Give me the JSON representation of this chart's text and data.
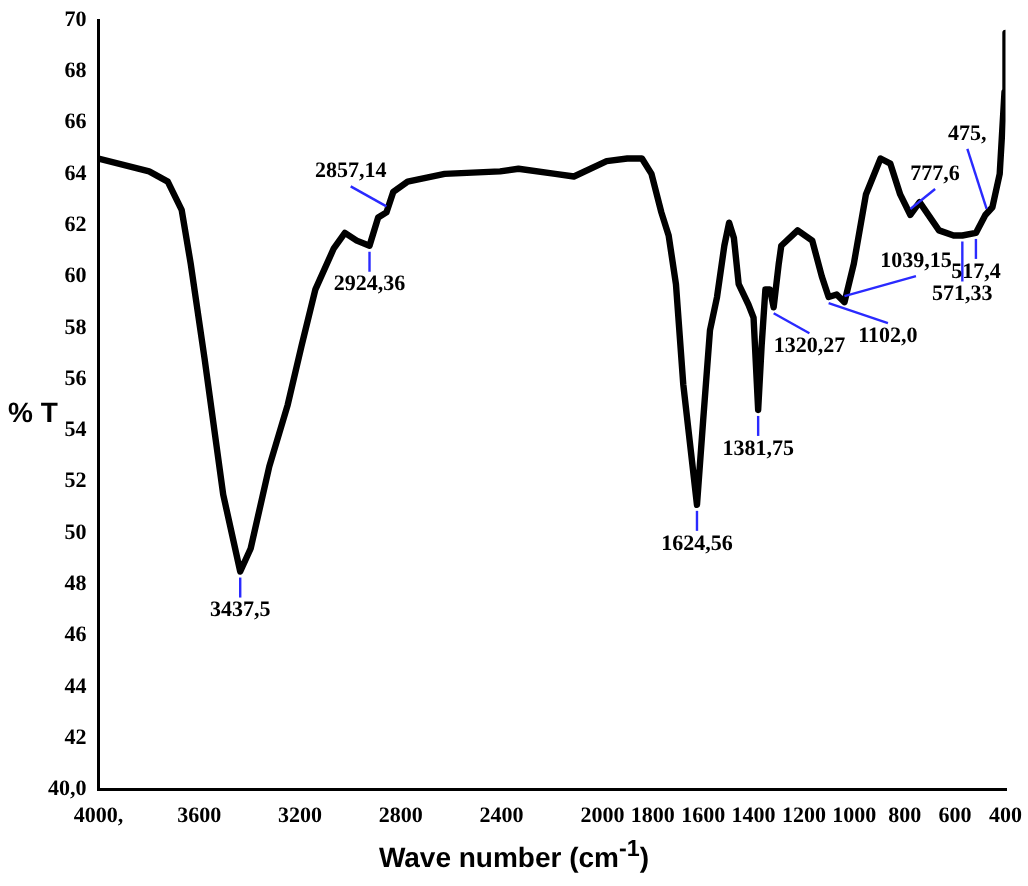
{
  "chart_data": {
    "type": "line",
    "xlabel": "Wave number (cm$^{-1}$)",
    "ylabel": "% T",
    "x": [
      4000,
      3799,
      3725,
      3670,
      3634,
      3579,
      3505,
      3437.5,
      3396,
      3322,
      3249,
      3194,
      3139,
      3066,
      3022,
      2975,
      2924.36,
      2890,
      2857.14,
      2830,
      2773,
      2626,
      2406,
      2333,
      2187,
      2113,
      1983,
      1901,
      1843,
      1805,
      1766,
      1737,
      1708,
      1679,
      1624.56,
      1600,
      1573,
      1545,
      1516,
      1497,
      1478,
      1459,
      1420,
      1400,
      1381.75,
      1368,
      1353,
      1335,
      1320.27,
      1300,
      1290,
      1225,
      1167,
      1129,
      1102,
      1070,
      1039.15,
      1002,
      954,
      896,
      857,
      818,
      777.6,
      741,
      664,
      606,
      571.33,
      517.4,
      480,
      452,
      423,
      404,
      400
    ],
    "series": [
      {
        "color": "#000000",
        "values": [
          64.6,
          64.1,
          63.7,
          62.6,
          60.5,
          56.8,
          51.5,
          48.5,
          49.4,
          52.6,
          55.0,
          57.3,
          59.5,
          61.1,
          61.7,
          61.4,
          61.2,
          62.3,
          62.5,
          63.3,
          63.7,
          64.0,
          64.1,
          64.2,
          64.0,
          63.9,
          64.5,
          64.6,
          64.6,
          64.0,
          62.5,
          61.6,
          59.7,
          55.8,
          51.1,
          54.4,
          57.9,
          59.2,
          61.2,
          62.1,
          61.5,
          59.7,
          58.9,
          58.4,
          54.8,
          57.3,
          59.5,
          59.5,
          58.8,
          60.5,
          61.2,
          61.8,
          61.4,
          60.0,
          59.2,
          59.3,
          59.0,
          60.5,
          63.2,
          64.6,
          64.4,
          63.2,
          62.4,
          62.9,
          61.8,
          61.6,
          61.6,
          61.7,
          62.4,
          62.7,
          64.0,
          67.2,
          69.5
        ]
      }
    ],
    "xlim": [
      4000,
      400
    ],
    "xticks": [
      {
        "value": 4000,
        "label": "4000,"
      },
      3600,
      3200,
      2800,
      2400,
      2000,
      1800,
      1600,
      1400,
      1200,
      1000,
      800,
      600,
      400
    ],
    "ylim": [
      40,
      70
    ],
    "yticks": [
      {
        "value": 40,
        "label": "40,0"
      },
      42,
      44,
      46,
      48,
      50,
      52,
      54,
      56,
      58,
      60,
      62,
      64,
      66,
      68,
      70
    ],
    "grid": false,
    "legend": false,
    "marker": "none",
    "line_style": "solid",
    "annotations": [
      {
        "text": "3437,5",
        "x": 3437.5,
        "y": 48.5
      },
      {
        "text": "2924,36",
        "x": 2924.36,
        "y": 61.2
      },
      {
        "text": "2857,14",
        "x": 2857.14,
        "y": 62.5
      },
      {
        "text": "1624,56",
        "x": 1624.56,
        "y": 51.1
      },
      {
        "text": "1381,75",
        "x": 1381.75,
        "y": 54.8
      },
      {
        "text": "1320,27",
        "x": 1320.27,
        "y": 58.8
      },
      {
        "text": "1102,0",
        "x": 1102,
        "y": 59.2
      },
      {
        "text": "1039,15",
        "x": 1039.15,
        "y": 59.0
      },
      {
        "text": "777,6",
        "x": 777.6,
        "y": 62.4
      },
      {
        "text": "571,33",
        "x": 571.33,
        "y": 61.6
      },
      {
        "text": "517,4",
        "x": 517.4,
        "y": 61.7
      },
      {
        "text": "475,",
        "x": 475,
        "y": 62.4
      }
    ]
  }
}
